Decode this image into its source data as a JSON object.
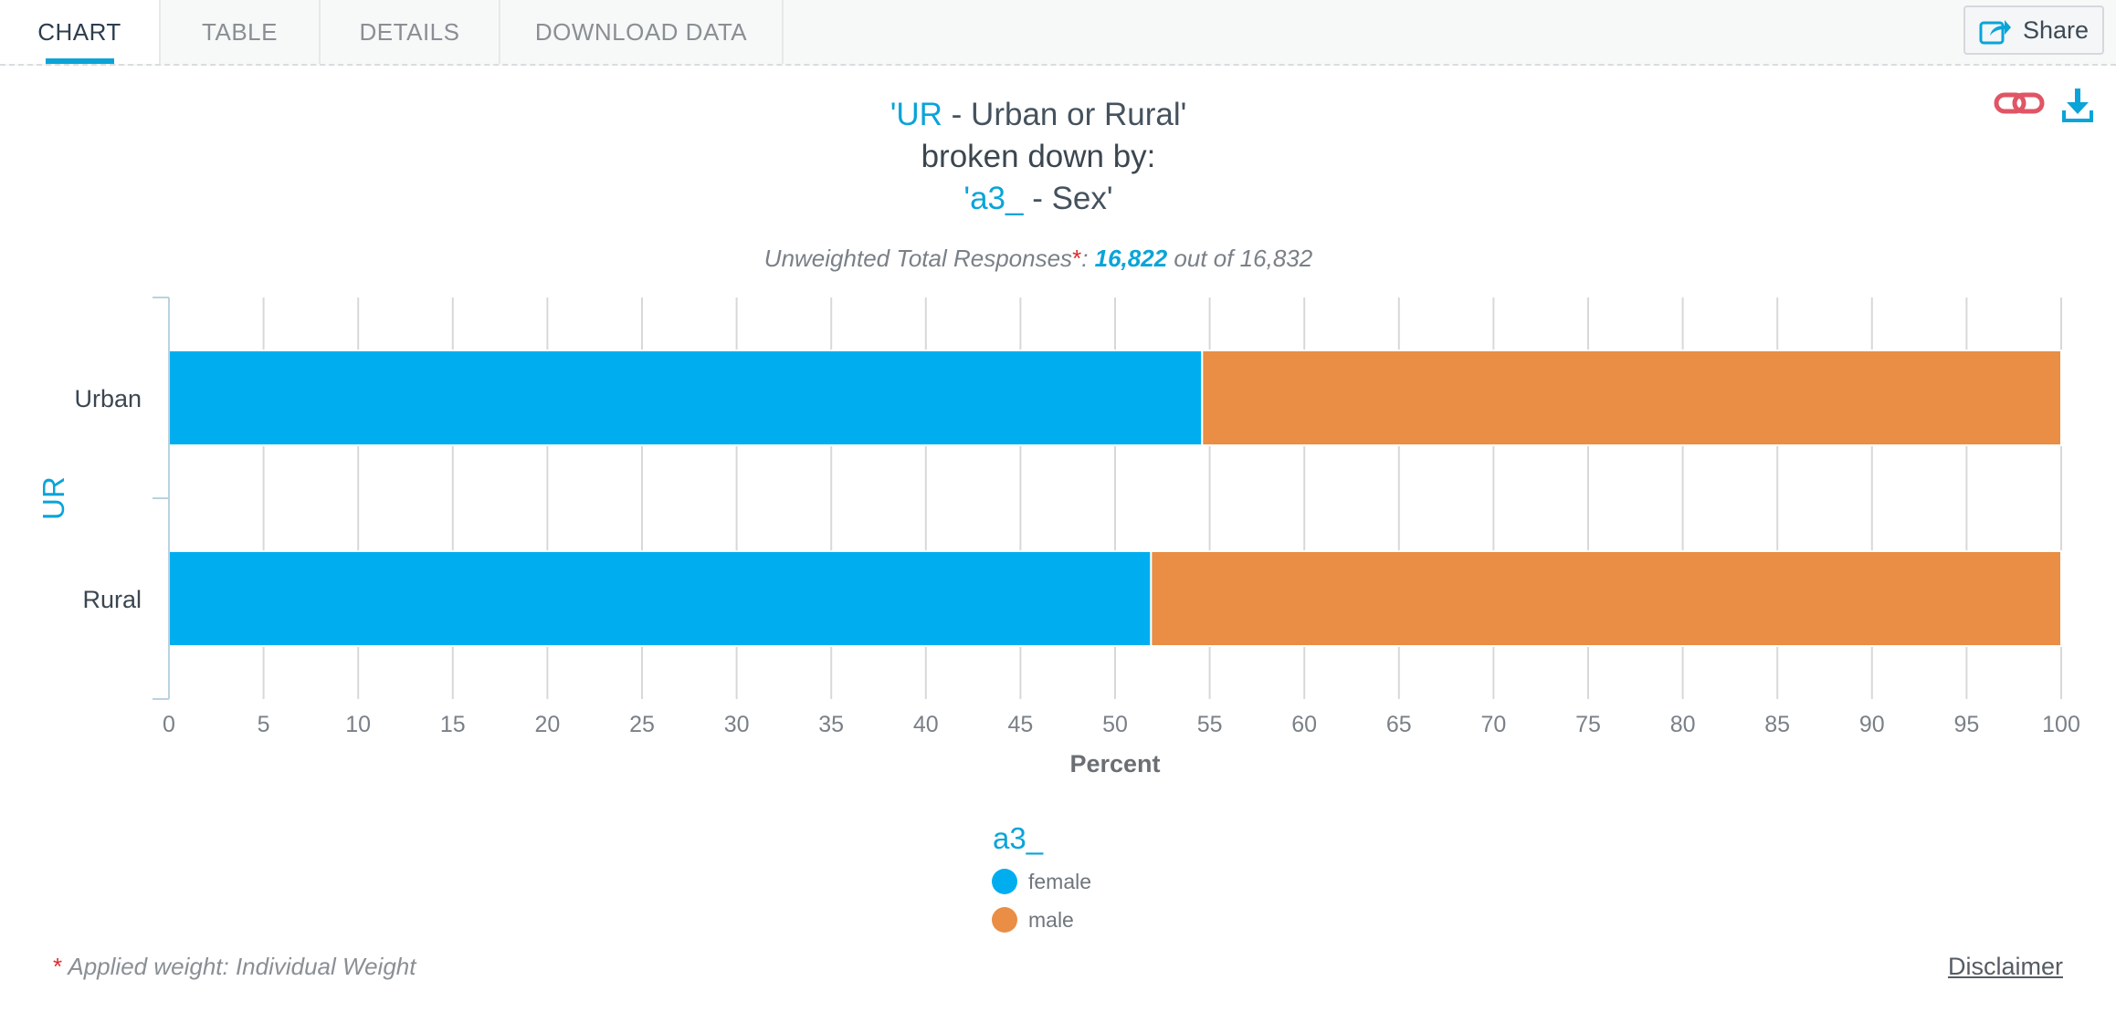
{
  "tabs": [
    {
      "label": "CHART",
      "active": true
    },
    {
      "label": "TABLE",
      "active": false
    },
    {
      "label": "DETAILS",
      "active": false
    },
    {
      "label": "DOWNLOAD DATA",
      "active": false
    }
  ],
  "share": {
    "label": "Share",
    "icon": "share-icon"
  },
  "top_icons": {
    "link": "link-icon",
    "download": "download-icon"
  },
  "title": {
    "quote_open": "'",
    "var_code": "UR",
    "var_label": " - Urban or Rural'",
    "broken_by": "broken down by:",
    "quote_open2": "'",
    "by_code": "a3_",
    "by_label": " - Sex'"
  },
  "subtitle": {
    "label": "Unweighted Total Responses",
    "star": "*",
    "colon": ": ",
    "count": "16,822",
    "out_of": " out of 16,832"
  },
  "chart_data": {
    "type": "bar",
    "orientation": "horizontal",
    "stacked": true,
    "categories": [
      "Urban",
      "Rural"
    ],
    "series": [
      {
        "name": "female",
        "color": "#00aeef",
        "values": [
          54.6,
          51.9
        ]
      },
      {
        "name": "male",
        "color": "#e98e44",
        "values": [
          45.4,
          48.1
        ]
      }
    ],
    "xlabel": "Percent",
    "ylabel": "UR",
    "xlim": [
      0,
      100
    ],
    "xticks": [
      0,
      5,
      10,
      15,
      20,
      25,
      30,
      35,
      40,
      45,
      50,
      55,
      60,
      65,
      70,
      75,
      80,
      85,
      90,
      95,
      100
    ],
    "grid": true,
    "legend": {
      "title": "a3_",
      "position": "bottom-center"
    }
  },
  "footer": {
    "star": "*",
    "note": " Applied weight: Individual Weight",
    "disclaimer": "Disclaimer"
  }
}
